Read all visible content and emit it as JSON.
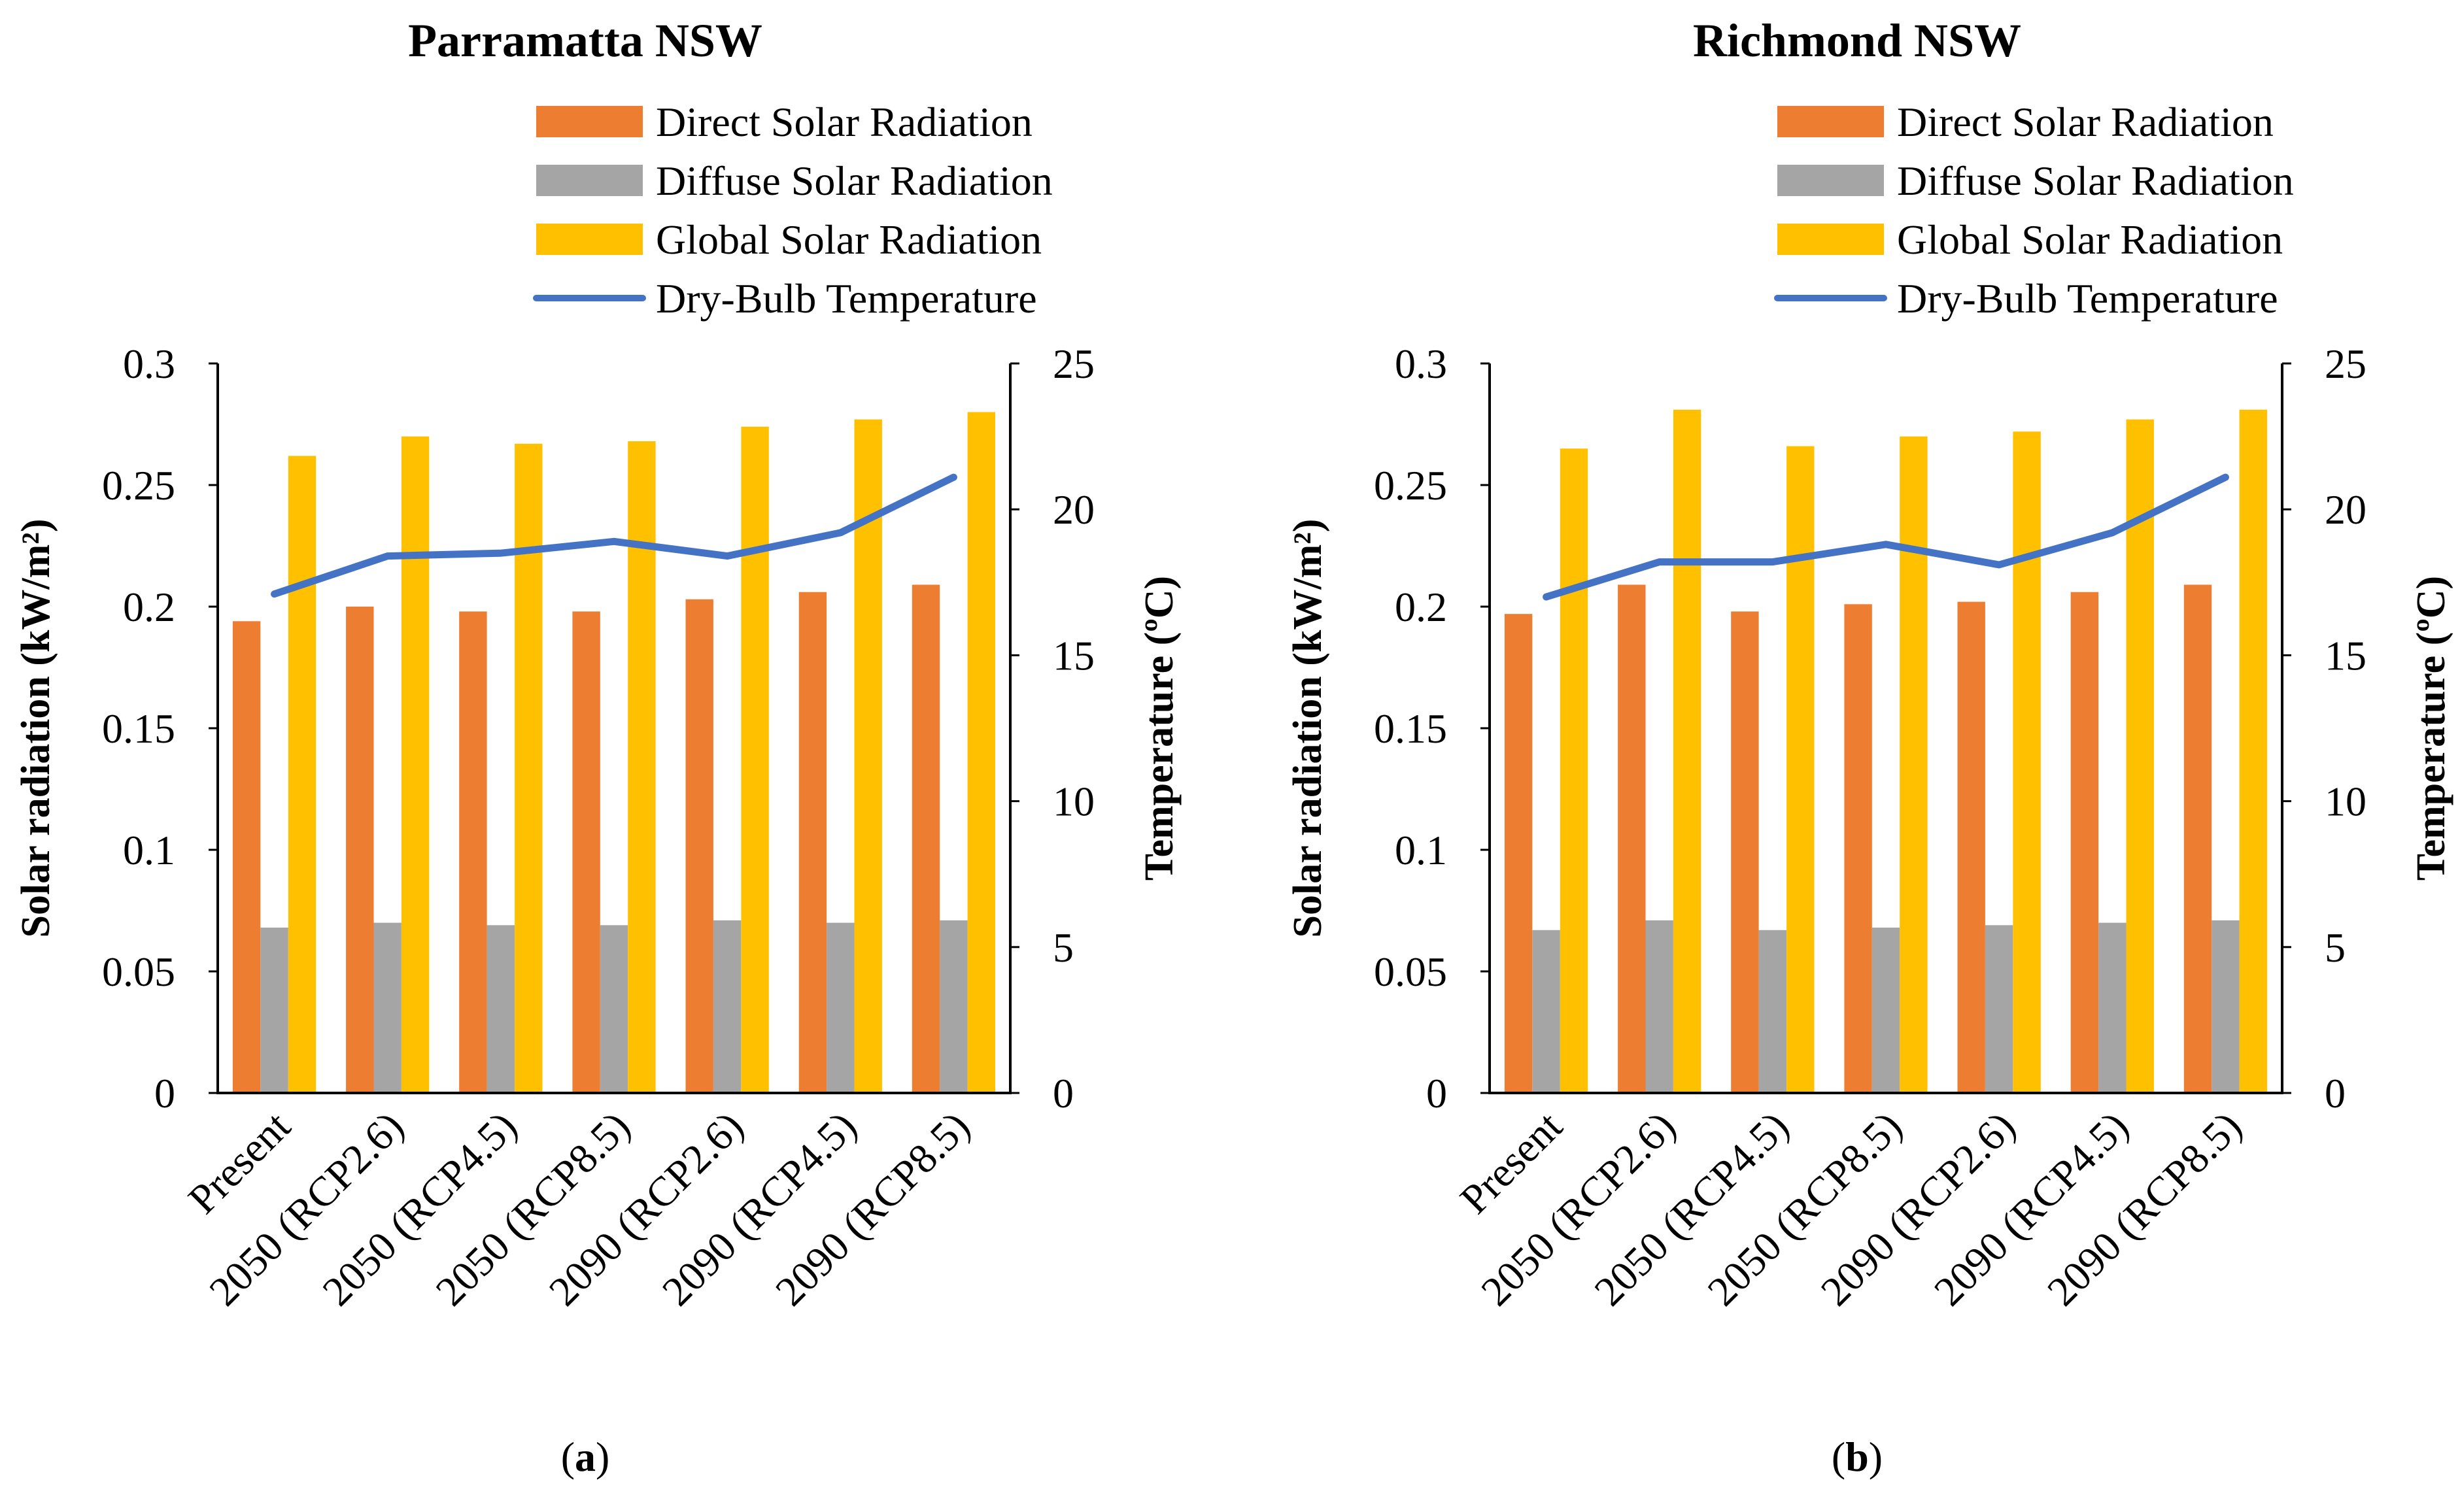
{
  "chart_data": [
    {
      "type": "bar",
      "title": "Parramatta NSW",
      "panel_label": "a",
      "categories": [
        "Present",
        "2050 (RCP2.6)",
        "2050 (RCP4.5)",
        "2050 (RCP8.5)",
        "2090 (RCP2.6)",
        "2090 (RCP4.5)",
        "2090 (RCP8.5)"
      ],
      "series": [
        {
          "name": "Direct Solar Radiation",
          "type": "bar",
          "axis": "left",
          "color": "#ED7D31",
          "values": [
            0.194,
            0.2,
            0.198,
            0.198,
            0.203,
            0.206,
            0.209
          ]
        },
        {
          "name": "Diffuse Solar Radiation",
          "type": "bar",
          "axis": "left",
          "color": "#A5A5A5",
          "values": [
            0.068,
            0.07,
            0.069,
            0.069,
            0.071,
            0.07,
            0.071
          ]
        },
        {
          "name": "Global Solar Radiation",
          "type": "bar",
          "axis": "left",
          "color": "#FFC000",
          "values": [
            0.262,
            0.27,
            0.267,
            0.268,
            0.274,
            0.277,
            0.28
          ]
        },
        {
          "name": "Dry-Bulb Temperature",
          "type": "line",
          "axis": "right",
          "color": "#4472C4",
          "values": [
            17.1,
            18.4,
            18.5,
            18.9,
            18.4,
            19.2,
            21.1
          ]
        }
      ],
      "ylabel": "Solar radiation (kW/m²)",
      "ylim": [
        0,
        0.3
      ],
      "yticks": [
        "0",
        "0.05",
        "0.1",
        "0.15",
        "0.2",
        "0.25",
        "0.3"
      ],
      "y2label": "Temperature (ºC)",
      "y2lim": [
        0,
        25
      ],
      "y2ticks": [
        "0",
        "5",
        "10",
        "15",
        "20",
        "25"
      ],
      "legend": "top-right",
      "grid": false
    },
    {
      "type": "bar",
      "title": "Richmond NSW",
      "panel_label": "b",
      "categories": [
        "Present",
        "2050 (RCP2.6)",
        "2050 (RCP4.5)",
        "2050 (RCP8.5)",
        "2090 (RCP2.6)",
        "2090 (RCP4.5)",
        "2090 (RCP8.5)"
      ],
      "series": [
        {
          "name": "Direct Solar Radiation",
          "type": "bar",
          "axis": "left",
          "color": "#ED7D31",
          "values": [
            0.197,
            0.209,
            0.198,
            0.201,
            0.202,
            0.206,
            0.209
          ]
        },
        {
          "name": "Diffuse Solar Radiation",
          "type": "bar",
          "axis": "left",
          "color": "#A5A5A5",
          "values": [
            0.067,
            0.071,
            0.067,
            0.068,
            0.069,
            0.07,
            0.071
          ]
        },
        {
          "name": "Global Solar Radiation",
          "type": "bar",
          "axis": "left",
          "color": "#FFC000",
          "values": [
            0.265,
            0.281,
            0.266,
            0.27,
            0.272,
            0.277,
            0.281
          ]
        },
        {
          "name": "Dry-Bulb Temperature",
          "type": "line",
          "axis": "right",
          "color": "#4472C4",
          "values": [
            17.0,
            18.2,
            18.2,
            18.8,
            18.1,
            19.2,
            21.1
          ]
        }
      ],
      "ylabel": "Solar radiation (kW/m²)",
      "ylim": [
        0,
        0.3
      ],
      "yticks": [
        "0",
        "0.05",
        "0.1",
        "0.15",
        "0.2",
        "0.25",
        "0.3"
      ],
      "y2label": "Temperature (ºC)",
      "y2lim": [
        0,
        25
      ],
      "y2ticks": [
        "0",
        "5",
        "10",
        "15",
        "20",
        "25"
      ],
      "legend": "top-right",
      "grid": false
    }
  ]
}
